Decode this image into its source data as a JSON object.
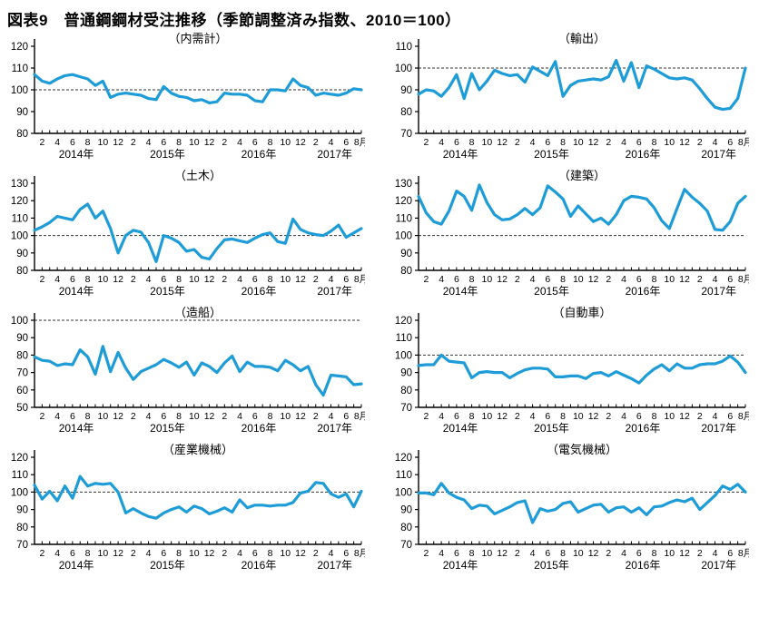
{
  "page_title": "図表9　普通鋼鋼材受注推移（季節調整済み指数、2010＝100）",
  "colors": {
    "line": "#1E9CD7",
    "axis": "#000000",
    "reference": "#333333",
    "background": "#FFFFFF"
  },
  "x_axis": {
    "months_total": 44,
    "tick_labels": [
      "2",
      "4",
      "6",
      "8",
      "10",
      "12",
      "2",
      "4",
      "6",
      "8",
      "10",
      "12",
      "2",
      "4",
      "6",
      "8",
      "10",
      "12",
      "2",
      "4",
      "6",
      "8月"
    ],
    "year_labels": [
      "2014年",
      "2015年",
      "2016年",
      "2017年"
    ]
  },
  "chart_data": [
    {
      "id": "domestic-demand-total",
      "type": "line",
      "title": "（内需計）",
      "ylim": [
        80,
        120
      ],
      "ytick_step": 10,
      "reference_value": 100,
      "values": [
        107,
        104,
        103,
        105,
        106.5,
        107,
        106,
        105,
        102,
        104,
        96.5,
        98,
        98.5,
        98,
        97.5,
        96,
        95.5,
        101.5,
        98.5,
        97,
        96.5,
        95,
        95.5,
        94,
        94.5,
        98.5,
        98,
        98,
        97.5,
        95,
        94.5,
        100,
        100,
        99.5,
        105,
        102,
        101,
        97.5,
        98.5,
        98,
        97.5,
        98.5,
        100.5,
        100
      ]
    },
    {
      "id": "exports",
      "type": "line",
      "title": "（輸出）",
      "ylim": [
        70,
        110
      ],
      "ytick_step": 10,
      "reference_value": 100,
      "values": [
        88,
        90,
        89.5,
        87,
        91,
        97,
        86,
        97.5,
        90,
        94,
        99,
        97.5,
        96.5,
        97,
        93.5,
        100.5,
        98.5,
        96.5,
        103,
        87,
        92,
        94,
        94.5,
        95,
        94.5,
        96,
        103.5,
        94,
        102.5,
        91,
        101,
        99.5,
        97.5,
        95.5,
        95,
        95.5,
        94.5,
        90.5,
        86,
        82,
        81,
        81.5,
        86,
        100
      ]
    },
    {
      "id": "civil-engineering",
      "type": "line",
      "title": "（土木）",
      "ylim": [
        80,
        130
      ],
      "ytick_step": 10,
      "reference_value": 100,
      "values": [
        103,
        105,
        107.5,
        111,
        110,
        109,
        115,
        118,
        110,
        114,
        104,
        90,
        100,
        103,
        102,
        96,
        85,
        100,
        98.5,
        96,
        91,
        92,
        87.5,
        86.5,
        92.5,
        97.5,
        98,
        97,
        96,
        98.5,
        100.5,
        101.5,
        96.5,
        95.5,
        109.5,
        103.5,
        101.5,
        100.5,
        100,
        102.5,
        106,
        99,
        101.5,
        104
      ]
    },
    {
      "id": "construction",
      "type": "line",
      "title": "（建築）",
      "ylim": [
        80,
        130
      ],
      "ytick_step": 10,
      "reference_value": 100,
      "values": [
        122.5,
        113,
        108,
        106.5,
        114,
        125.5,
        122.5,
        114.5,
        129,
        119,
        112,
        109,
        109.5,
        112,
        115.5,
        112,
        116,
        128.5,
        125,
        121,
        111,
        117,
        112.5,
        108,
        110,
        106.5,
        112,
        120,
        122.5,
        122,
        121,
        116,
        108.5,
        104,
        115.5,
        126.5,
        122,
        118.5,
        114,
        103.5,
        103,
        108,
        118.5,
        122.5
      ]
    },
    {
      "id": "shipbuilding",
      "type": "line",
      "title": "（造船）",
      "ylim": [
        50,
        100
      ],
      "ytick_step": 10,
      "reference_value": 100,
      "values": [
        79,
        77,
        76.5,
        74,
        75,
        74.5,
        83,
        79,
        69,
        85,
        70.5,
        81.5,
        72.5,
        66,
        70.5,
        72.5,
        74.5,
        77.5,
        75.5,
        73,
        76,
        68.5,
        75.5,
        73.5,
        70,
        75.5,
        79.5,
        70.5,
        76,
        73.5,
        73.5,
        73,
        71,
        77,
        74.5,
        71,
        73.5,
        63,
        57,
        68.5,
        68,
        67.5,
        63,
        63.5
      ]
    },
    {
      "id": "automobiles",
      "type": "line",
      "title": "（自動車）",
      "ylim": [
        70,
        120
      ],
      "ytick_step": 10,
      "reference_value": 100,
      "values": [
        94,
        94.5,
        94.5,
        100,
        96.5,
        96,
        95.5,
        87,
        90,
        90.5,
        90,
        90,
        87,
        89.5,
        91.5,
        92.5,
        92.5,
        92,
        87.5,
        87.5,
        88,
        88,
        86.5,
        89.5,
        90,
        88,
        90.5,
        88.5,
        86.5,
        84,
        88.5,
        92,
        94.5,
        91,
        95,
        92.5,
        92.5,
        94.5,
        95,
        95,
        96.5,
        99.5,
        96,
        90
      ]
    },
    {
      "id": "industrial-machinery",
      "type": "line",
      "title": "（産業機械）",
      "ylim": [
        70,
        120
      ],
      "ytick_step": 10,
      "reference_value": 100,
      "values": [
        104,
        96,
        100.5,
        95,
        103.5,
        96.5,
        109,
        103.5,
        105,
        104.5,
        105,
        100,
        88,
        90.5,
        88,
        86,
        85,
        88,
        90,
        91.5,
        88.5,
        92,
        90.5,
        87.5,
        89,
        91,
        88.5,
        95.5,
        91,
        92.5,
        92.5,
        92,
        92.5,
        92.5,
        94,
        99.5,
        100.5,
        105.5,
        105,
        99,
        97,
        99,
        91.5,
        100.5
      ]
    },
    {
      "id": "electrical-machinery",
      "type": "line",
      "title": "（電気機械）",
      "ylim": [
        70,
        120
      ],
      "ytick_step": 10,
      "reference_value": 100,
      "values": [
        99.5,
        99.5,
        98.5,
        105,
        99.5,
        97,
        95.5,
        90.5,
        92.5,
        92,
        87.5,
        89.5,
        91.5,
        94,
        95,
        82.5,
        90.5,
        89,
        90,
        93.5,
        94.5,
        88.5,
        90.5,
        92.5,
        93,
        88.5,
        91,
        91.5,
        88.5,
        91,
        87,
        91.5,
        92,
        94,
        95.5,
        94.5,
        96.5,
        90,
        94,
        98,
        103.5,
        101.5,
        104.5,
        100
      ]
    }
  ]
}
